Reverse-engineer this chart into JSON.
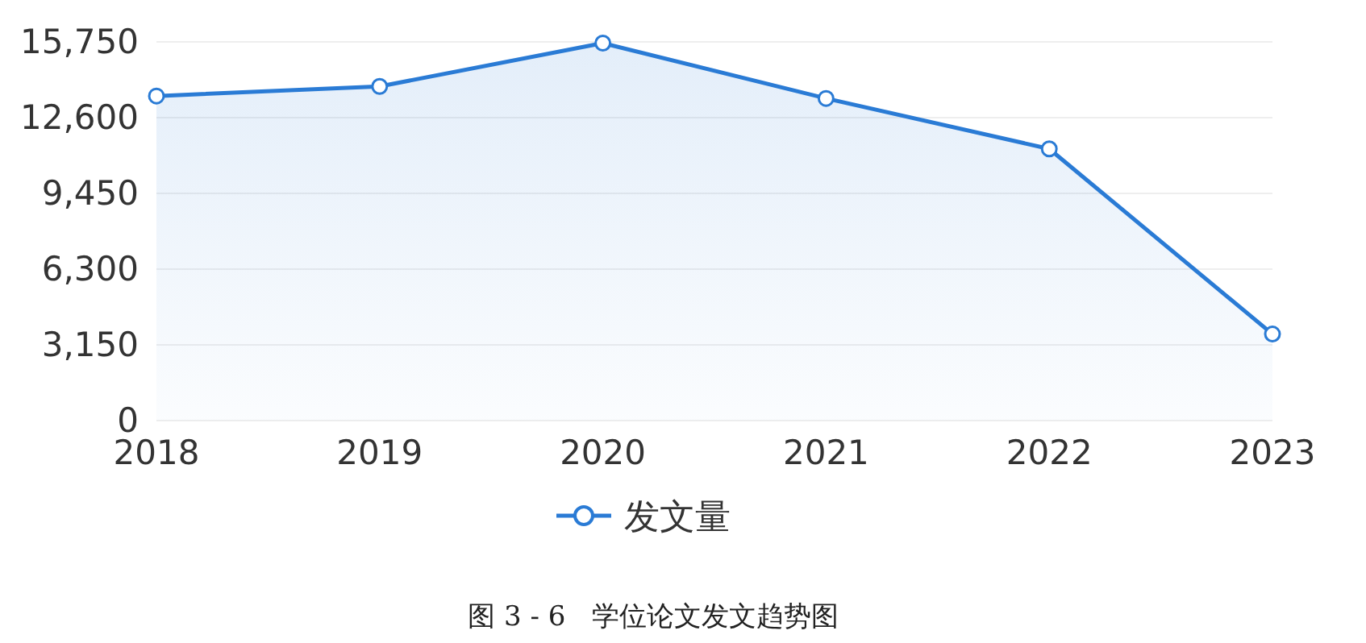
{
  "chart_data": {
    "type": "area",
    "categories": [
      "2018",
      "2019",
      "2020",
      "2021",
      "2022",
      "2023"
    ],
    "series": [
      {
        "name": "发文量",
        "color": "#2a7bd5",
        "values": [
          13500,
          13900,
          15700,
          13400,
          11300,
          3600
        ]
      }
    ],
    "ylim": [
      0,
      15750
    ],
    "yticks": [
      0,
      {
        "value": 3150,
        "label": "3,150"
      },
      {
        "value": 6300,
        "label": "6,300"
      },
      {
        "value": 9450,
        "label": "9,450"
      },
      {
        "value": 12600,
        "label": "12,600"
      },
      {
        "value": 15750,
        "label": "15,750"
      }
    ],
    "grid": "y",
    "marker": "circle",
    "legend": "bottom",
    "annotations": [
      "图 3 - 6   学位论文发文趋势图"
    ]
  }
}
